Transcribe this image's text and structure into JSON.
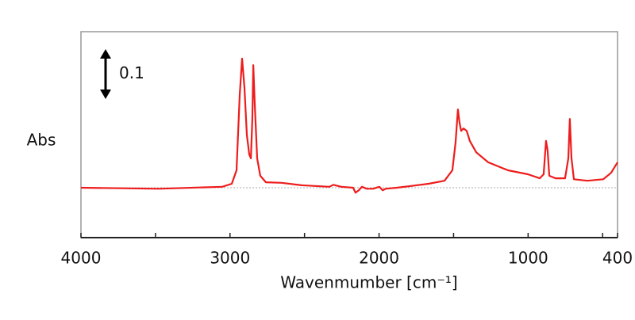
{
  "chart_data": {
    "type": "line",
    "y_label": "Abs",
    "x_label": "Wavenmumber [cm⁻¹]",
    "scale_bar": 0.1,
    "reference_line": 0,
    "xlim": [
      4000,
      400
    ],
    "ylim": [
      -0.1,
      0.313
    ],
    "xticks": [
      4000,
      3000,
      2000,
      1000,
      400
    ],
    "xminorticks": [
      3500,
      2500,
      1500,
      500
    ],
    "series": [
      {
        "color": "#ee1c1c",
        "x": [
          4000,
          3478,
          3052,
          2988,
          2956,
          2935,
          2919,
          2903,
          2887,
          2871,
          2860,
          2850,
          2844,
          2834,
          2818,
          2797,
          2759,
          2653,
          2520,
          2333,
          2307,
          2253,
          2174,
          2158,
          2136,
          2115,
          2083,
          2040,
          1998,
          1976,
          1955,
          1881,
          1801,
          1668,
          1561,
          1508,
          1487,
          1471,
          1460,
          1449,
          1433,
          1412,
          1391,
          1348,
          1268,
          1135,
          1002,
          922,
          896,
          880,
          869,
          858,
          816,
          752,
          730,
          720,
          709,
          693,
          603,
          496,
          443,
          400
        ],
        "values": [
          0.0,
          -0.002,
          0.002,
          0.008,
          0.035,
          0.186,
          0.259,
          0.2,
          0.106,
          0.067,
          0.059,
          0.138,
          0.246,
          0.17,
          0.059,
          0.024,
          0.011,
          0.01,
          0.005,
          0.002,
          0.006,
          0.002,
          0.0,
          -0.01,
          -0.005,
          0.002,
          -0.002,
          -0.002,
          0.002,
          -0.005,
          -0.002,
          0.0,
          0.003,
          0.008,
          0.014,
          0.035,
          0.09,
          0.157,
          0.13,
          0.114,
          0.119,
          0.114,
          0.094,
          0.071,
          0.051,
          0.035,
          0.027,
          0.019,
          0.027,
          0.094,
          0.075,
          0.024,
          0.019,
          0.019,
          0.059,
          0.138,
          0.059,
          0.017,
          0.014,
          0.017,
          0.03,
          0.051
        ]
      }
    ]
  }
}
